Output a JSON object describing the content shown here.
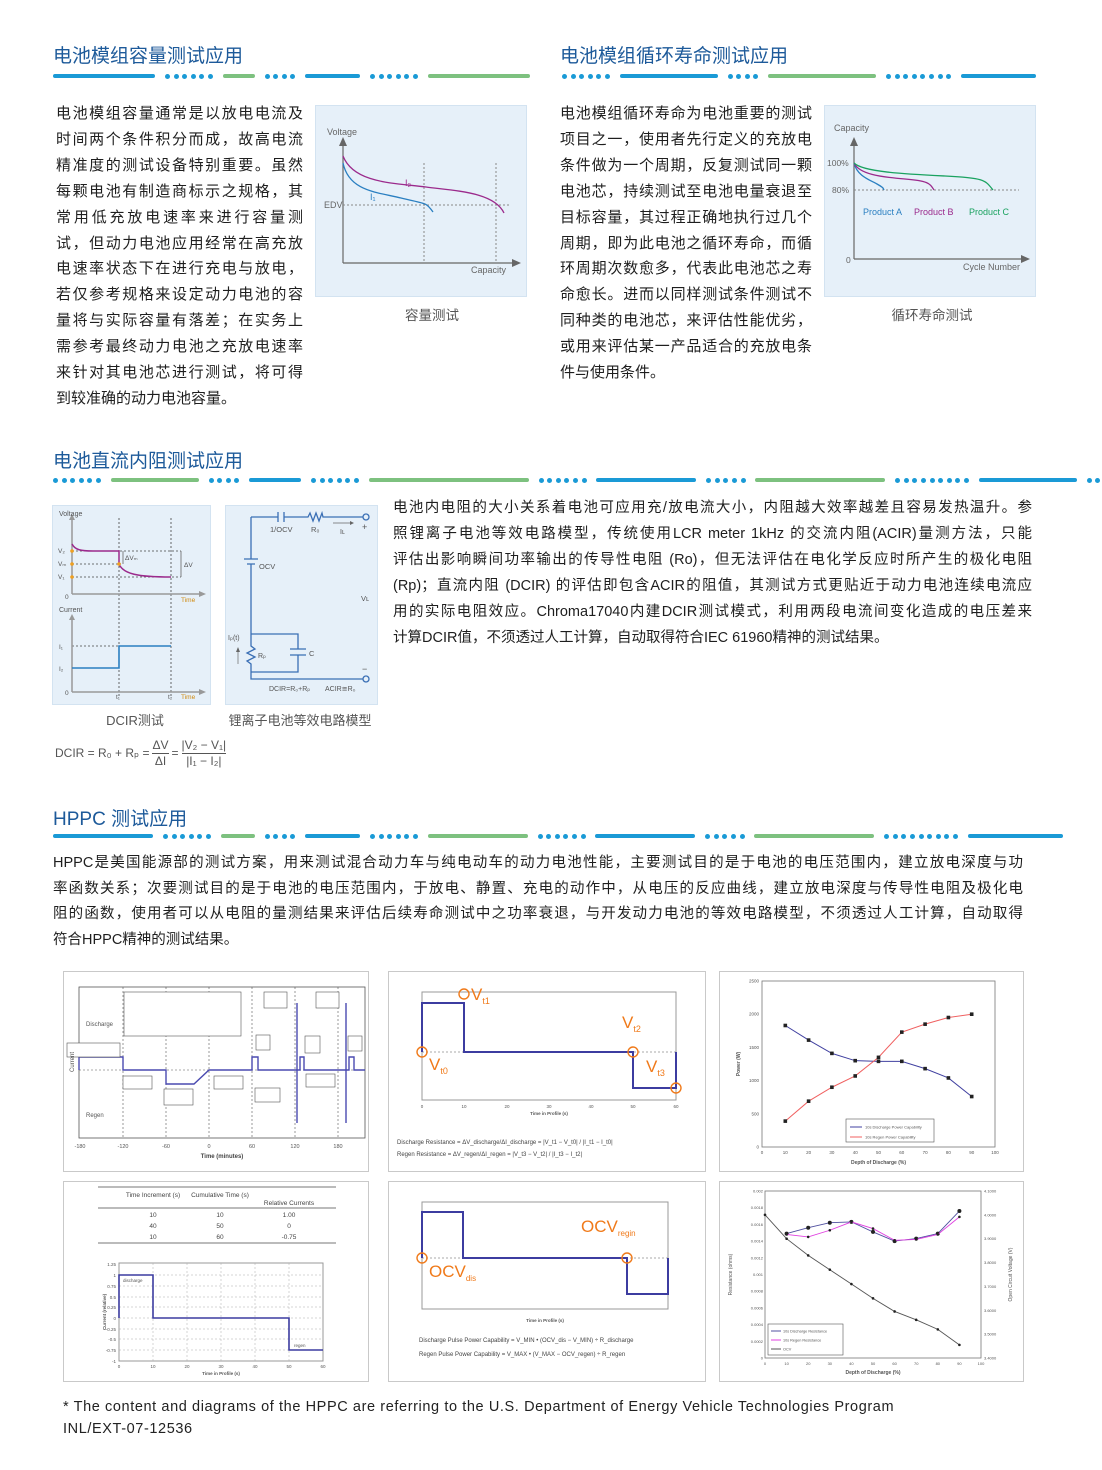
{
  "colors": {
    "title": "#1d5a9a",
    "accent_blue": "#1a9ad6",
    "accent_green": "#7dc17f",
    "curve_blue": "#2a7fc1",
    "curve_purple": "#9b2a8c",
    "curve_green": "#1aa260",
    "hppc_line": "#3c3ca0",
    "marker_orange": "#f07a1a"
  },
  "section_capacity": {
    "title": "电池模组容量测试应用",
    "lines": [
      "电池模组容量通常是以放电电流及",
      "时间两个条件积分而成，故高电流",
      "精准度的测试设备特别重要。虽然",
      "每颗电池有制造商标示之规格，其",
      "常用低充放电速率来进行容量测",
      "试，但动力电池应用经常在高充放",
      "电速率状态下在进行充电与放电，",
      "若仅参考规格来设定动力电池的容",
      "量将与实际容量有落差；在实务上",
      "需参考最终动力电池之充放电速率",
      "来针对其电池芯进行测试，将可得",
      "到较准确的动力电池容量。"
    ],
    "figure": {
      "y_label": "Voltage",
      "x_label": "Capacity",
      "edv_label": "EDV",
      "i1_label": "I₁",
      "i2_label": "I₂",
      "caption": "容量测试"
    }
  },
  "section_cycle": {
    "title": "电池模组循环寿命测试应用",
    "lines": [
      "电池模组循环寿命为电池重要的测试",
      "项目之一，使用者先行定义的充放电",
      "条件做为一个周期，反复测试同一颗",
      "电池芯，持续测试至电池电量衰退至",
      "目标容量，其过程正确地执行过几个",
      "周期，即为此电池之循环寿命，而循",
      "环周期次数愈多，代表此电池芯之寿",
      "命愈长。进而以同样测试条件测试不",
      "同种类的电池芯，来评估性能优劣，",
      "或用来评估某一产品适合的充放电条",
      "件与使用条件。"
    ],
    "figure": {
      "y_label": "Capacity",
      "x_label": "Cycle Number",
      "tick_100": "100%",
      "tick_80": "80%",
      "tick_0": "0",
      "product_a": "Product A",
      "product_b": "Product B",
      "product_c": "Product C",
      "caption": "循环寿命测试"
    }
  },
  "section_dcir": {
    "title": "电池直流内阻测试应用",
    "lines": [
      "电池内电阻的大小关系着电池可应用充/放电流大小，内阻越大效率越差且容易发热温升。参",
      "照锂离子电池等效电路模型，传统使用LCR meter 1kHz 的交流内阻(ACIR)量测方法，只能",
      "评估出影响瞬间功率输出的传导性电阻 (Ro)，但无法评估在电化学反应时所产生的极化电阻",
      "(Rp)；直流内阻 (DCIR) 的评估即包含ACIR的阻值，其测试方式更贴近于动力电池连续电流应",
      "用的实际电阻效应。Chroma17040内建DCIR测试模式，利用两段电流间变化造成的电压差来",
      "计算DCIR值，不须透过人工计算，自动取得符合IEC 61960精神的测试结果。"
    ],
    "dcir_figure": {
      "voltage_label": "Voltage",
      "current_label": "Current",
      "v2": "V₂",
      "vm": "Vₘ",
      "v1": "V₁",
      "delta_vm": "ΔVₘ",
      "delta_v": "ΔV",
      "zero": "0",
      "time": "Time",
      "i1": "I₁",
      "i2": "I₂",
      "t1": "t₁",
      "t2": "t₂",
      "caption": "DCIR测试"
    },
    "circuit_figure": {
      "inv_ocv": "1/OCV",
      "r0": "R₀",
      "il": "Iʟ",
      "plus": "+",
      "ocv": "OCV",
      "vl": "Vʟ",
      "ip": "Iₚ(t)",
      "rp": "Rₚ",
      "c": "C",
      "minus": "−",
      "dcir_eq": "DCIR=R₀+Rₚ",
      "acir_eq": "ACIR≅R₀",
      "caption": "锂离子电池等效电路模型"
    },
    "formula": {
      "lhs": "DCIR = R₀ + Rₚ =",
      "num1": "ΔV",
      "den1": "ΔI",
      "eq": "=",
      "num2": "|V₂ − V₁|",
      "den2": "|I₁ − I₂|"
    }
  },
  "section_hppc": {
    "title": "HPPC 测试应用",
    "lines": [
      "HPPC是美国能源部的测试方案，用来测试混合动力车与纯电动车的动力电池性能，主要测试目的是于电池的电压范围内，建立放电深度与功",
      "率函数关系；次要测试目的是于电池的电压范围内，于放电、静置、充电的动作中，从电压的反应曲线，建立放电深度与传导性电阻及极化电",
      "阻的函数，使用者可以从电阻的量测结果来评估后续寿命测试中之功率衰退，与开发动力电池的等效电路模型，不须透过人工计算，自动取得",
      "符合HPPC精神的测试结果。"
    ],
    "fig_sequence": {
      "y_label": "Current",
      "discharge": "Discharge",
      "regen": "Regen",
      "x_label": "Time (minutes)",
      "x_ticks": [
        "-180",
        "-120",
        "-60",
        "0",
        "60",
        "120",
        "180"
      ]
    },
    "fig_resistance": {
      "vt0": "V",
      "vt0_sub": "t0",
      "vt1": "V",
      "vt1_sub": "t1",
      "vt2": "V",
      "vt2_sub": "t2",
      "vt3": "V",
      "vt3_sub": "t3",
      "x_label": "Time in Profile (s)",
      "x_ticks": [
        "0",
        "10",
        "20",
        "30",
        "40",
        "50",
        "60"
      ],
      "formula_discharge": "Discharge Resistance = ΔV_discharge/ΔI_discharge = |V_t1 − V_t0| / |I_t1 − I_t0|",
      "formula_regen": "Regen Resistance = ΔV_regen/ΔI_regen = |V_t3 − V_t2| / |I_t3 − I_t2|"
    },
    "fig_profile": {
      "table": {
        "headers": [
          "Time Increment (s)",
          "Cumulative Time (s)",
          "Relative Currents"
        ],
        "rows": [
          [
            "10",
            "10",
            "1.00"
          ],
          [
            "40",
            "50",
            "0"
          ],
          [
            "10",
            "60",
            "-0.75"
          ]
        ]
      },
      "y_ticks": [
        "1.25",
        "1",
        "0.75",
        "0.5",
        "0.25",
        "0",
        "-0.25",
        "-0.5",
        "-0.75",
        "-1"
      ],
      "x_ticks": [
        "0",
        "10",
        "20",
        "30",
        "40",
        "50",
        "60"
      ],
      "discharge_label": "discharge",
      "regen_label": "regen",
      "x_label": "Time in Profile (s)",
      "y_label": "Current (relative)"
    },
    "fig_power_capability": {
      "vocv_dis": "OCV",
      "dis_sub": "dis",
      "vocv_regin": "OCV",
      "regin_sub": "regin",
      "x_label": "Time in Profile (s)",
      "formula_discharge": "Discharge Pulse Power Capability = V_MIN • (OCV_dis − V_MIN) ÷ R_discharge",
      "formula_regen": "Regen Pulse Power Capability = V_MAX • (V_MAX − OCV_regen) ÷ R_regen"
    }
  },
  "chart_data": [
    {
      "type": "line",
      "xlabel": "Depth of Discharge (%)",
      "ylabel": "Power (W)",
      "xlim": [
        0,
        100
      ],
      "ylim": [
        0,
        2500
      ],
      "x_ticks": [
        "0",
        "10",
        "20",
        "30",
        "40",
        "50",
        "60",
        "70",
        "80",
        "90",
        "100"
      ],
      "y_ticks": [
        "0",
        "500",
        "1000",
        "1500",
        "2000",
        "2500"
      ],
      "x": [
        10,
        20,
        30,
        40,
        50,
        60,
        70,
        80,
        90
      ],
      "series": [
        {
          "name": "10s Discharge Power Capability",
          "values": [
            1830,
            1610,
            1410,
            1300,
            1290,
            1290,
            1180,
            1040,
            760
          ]
        },
        {
          "name": "10s Regen Power Capability",
          "values": [
            390,
            690,
            900,
            1070,
            1350,
            1730,
            1850,
            1950,
            2000
          ]
        }
      ],
      "legend": "bottom-right"
    },
    {
      "type": "line",
      "xlabel": "Depth of Discharge (%)",
      "ylabel": "Resistance (ohms)",
      "y2label": "Open Circuit Voltage (V)",
      "xlim": [
        0,
        100
      ],
      "ylim": [
        0,
        0.002
      ],
      "y2lim": [
        3.4,
        4.1
      ],
      "x_ticks": [
        "0",
        "10",
        "20",
        "30",
        "40",
        "50",
        "60",
        "70",
        "80",
        "90",
        "100"
      ],
      "y_ticks": [
        "0",
        "0.0002",
        "0.0004",
        "0.0006",
        "0.0008",
        "0.001",
        "0.0012",
        "0.0014",
        "0.0016",
        "0.0018",
        "0.002"
      ],
      "y2_ticks": [
        "3.4000",
        "3.5000",
        "3.6000",
        "3.7000",
        "3.8000",
        "3.9000",
        "4.0000",
        "4.1000"
      ],
      "series": [
        {
          "name": "10s Discharge Resistance",
          "x": [
            10,
            20,
            30,
            40,
            50,
            60,
            70,
            80,
            90
          ],
          "values": [
            0.00149,
            0.00156,
            0.00162,
            0.00163,
            0.00151,
            0.0014,
            0.00143,
            0.00149,
            0.00176
          ]
        },
        {
          "name": "10s Regen Resistance",
          "x": [
            10,
            20,
            30,
            40,
            50,
            60,
            70,
            80,
            90
          ],
          "values": [
            0.00148,
            0.00145,
            0.00153,
            0.00163,
            0.00155,
            0.00141,
            0.00142,
            0.00148,
            0.00169
          ]
        },
        {
          "name": "OCV",
          "axis": "y2",
          "x": [
            0,
            10,
            20,
            30,
            40,
            50,
            60,
            70,
            80,
            90
          ],
          "values": [
            4.0,
            3.9,
            3.83,
            3.77,
            3.71,
            3.65,
            3.595,
            3.56,
            3.52,
            3.455
          ]
        }
      ],
      "legend": "bottom-left"
    }
  ],
  "footnote": {
    "line1": "* The content and diagrams of the HPPC are referring to the U.S. Department of Energy Vehicle Technologies Program",
    "line2": "INL/EXT-07-12536"
  }
}
